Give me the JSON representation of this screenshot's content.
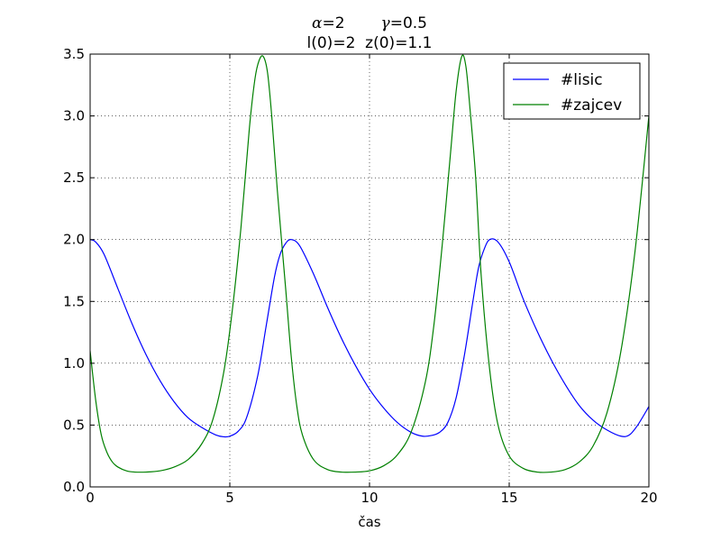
{
  "chart_data": {
    "type": "line",
    "title_line1": {
      "alpha_symbol": "α",
      "alpha_value": "=2",
      "gamma_symbol": "γ",
      "gamma_value": "=0.5"
    },
    "title_line2": "l(0)=2  z(0)=1.1",
    "xlabel": "čas",
    "ylabel": "",
    "xlim": [
      0,
      20
    ],
    "ylim": [
      0,
      3.5
    ],
    "xticks": [
      0,
      5,
      10,
      15,
      20
    ],
    "xtick_labels": [
      "0",
      "5",
      "10",
      "15",
      "20"
    ],
    "yticks": [
      0,
      0.5,
      1,
      1.5,
      2,
      2.5,
      3,
      3.5
    ],
    "ytick_labels": [
      "0.0",
      "0.5",
      "1.0",
      "1.5",
      "2.0",
      "2.5",
      "3.0",
      "3.5"
    ],
    "grid": true,
    "legend_position": "top-right",
    "series": [
      {
        "name": "#lisic",
        "color": "#0000ff",
        "x": [
          0,
          0.2,
          0.5,
          1,
          1.5,
          2,
          2.5,
          3,
          3.5,
          4,
          4.5,
          4.8,
          5,
          5.3,
          5.6,
          6,
          6.3,
          6.6,
          6.8,
          7,
          7.2,
          7.5,
          8,
          8.5,
          9,
          9.5,
          10,
          10.5,
          11,
          11.5,
          11.9,
          12.2,
          12.5,
          12.8,
          13.1,
          13.4,
          13.7,
          13.9,
          14.1,
          14.3,
          14.6,
          15,
          15.5,
          16,
          16.5,
          17,
          17.5,
          18,
          18.5,
          19,
          19.3,
          19.6,
          20
        ],
        "y": [
          2.0,
          1.98,
          1.88,
          1.6,
          1.32,
          1.07,
          0.86,
          0.69,
          0.56,
          0.48,
          0.42,
          0.405,
          0.41,
          0.45,
          0.56,
          0.9,
          1.3,
          1.7,
          1.88,
          1.97,
          2.0,
          1.95,
          1.72,
          1.45,
          1.2,
          0.98,
          0.79,
          0.64,
          0.52,
          0.44,
          0.41,
          0.415,
          0.44,
          0.52,
          0.72,
          1.07,
          1.5,
          1.77,
          1.92,
          2.0,
          1.98,
          1.82,
          1.52,
          1.26,
          1.03,
          0.83,
          0.66,
          0.54,
          0.46,
          0.41,
          0.42,
          0.5,
          0.65
        ]
      },
      {
        "name": "#zajcev",
        "color": "#008000",
        "x": [
          0,
          0.2,
          0.4,
          0.6,
          0.8,
          1,
          1.3,
          1.6,
          2,
          2.5,
          3,
          3.5,
          4,
          4.4,
          4.8,
          5.1,
          5.4,
          5.7,
          5.9,
          6.05,
          6.2,
          6.35,
          6.5,
          6.7,
          7,
          7.2,
          7.4,
          7.6,
          8,
          8.5,
          9,
          9.5,
          10,
          10.5,
          11,
          11.5,
          12,
          12.3,
          12.6,
          12.9,
          13.1,
          13.3,
          13.45,
          13.6,
          13.8,
          14,
          14.3,
          14.6,
          15,
          15.5,
          16,
          16.5,
          17,
          17.5,
          18,
          18.5,
          19,
          19.5,
          20
        ],
        "y": [
          1.1,
          0.7,
          0.42,
          0.28,
          0.2,
          0.16,
          0.13,
          0.12,
          0.12,
          0.13,
          0.16,
          0.22,
          0.35,
          0.55,
          0.95,
          1.45,
          2.1,
          2.9,
          3.3,
          3.45,
          3.48,
          3.35,
          3.0,
          2.4,
          1.6,
          1.05,
          0.65,
          0.42,
          0.22,
          0.14,
          0.12,
          0.12,
          0.13,
          0.17,
          0.26,
          0.45,
          0.85,
          1.3,
          1.95,
          2.7,
          3.2,
          3.48,
          3.4,
          3.05,
          2.5,
          1.7,
          0.95,
          0.5,
          0.25,
          0.15,
          0.12,
          0.12,
          0.14,
          0.2,
          0.33,
          0.6,
          1.1,
          1.9,
          3.0
        ]
      }
    ]
  }
}
